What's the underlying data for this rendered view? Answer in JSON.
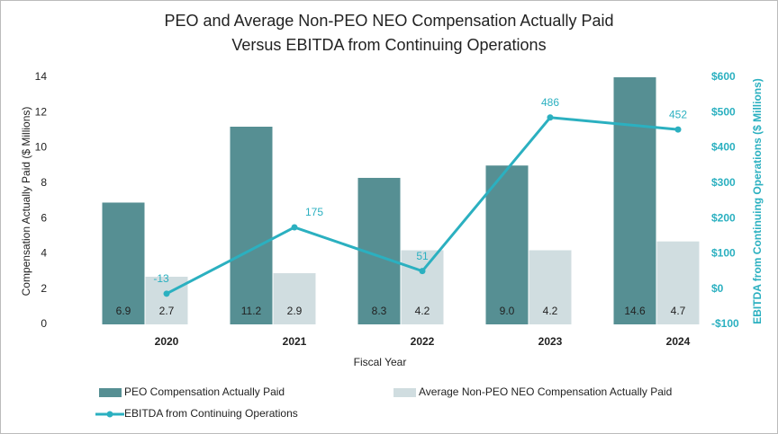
{
  "chart_data": {
    "type": "bar-line",
    "title": [
      "PEO and Average Non-PEO NEO Compensation Actually Paid",
      "Versus EBITDA from Continuing Operations"
    ],
    "x_label": "Fiscal Year",
    "y_label": "Compensation Actually Paid ($ Millions)",
    "y2_label": "EBITDA from Continuing Operations ($ Millions)",
    "categories": [
      "2020",
      "2021",
      "2022",
      "2023",
      "2024"
    ],
    "series": [
      {
        "name": "PEO Compensation Actually Paid",
        "type": "bar",
        "color": "#568f93",
        "values": [
          6.9,
          11.2,
          8.3,
          9,
          14.6
        ],
        "value_labels": [
          "6.9",
          "11.2",
          "8.3",
          "9.0",
          "14.6"
        ]
      },
      {
        "name": "Average Non-PEO NEO Compensation Actually Paid",
        "type": "bar",
        "color": "#d0dde0",
        "values": [
          2.7,
          2.9,
          4.2,
          4.2,
          4.7
        ]
      },
      {
        "name": "EBITDA from Continuing Operations",
        "type": "line",
        "axis": "y2",
        "color": "#2bb0c0",
        "values": [
          -13,
          175,
          51,
          486,
          452
        ]
      }
    ],
    "ylim": [
      0,
      14
    ],
    "yticks": [
      0,
      2,
      4,
      6,
      8,
      10,
      12,
      14
    ],
    "y2lim": [
      -100,
      600
    ],
    "y2ticks": [
      {
        "value": -100,
        "label": "-$100"
      },
      {
        "value": 0,
        "label": "$0"
      },
      {
        "value": 100,
        "label": "$100"
      },
      {
        "value": 200,
        "label": "$200"
      },
      {
        "value": 300,
        "label": "$300"
      },
      {
        "value": 400,
        "label": "$400"
      },
      {
        "value": 500,
        "label": "$500"
      },
      {
        "value": 600,
        "label": "$600"
      }
    ],
    "legend": "bottom"
  }
}
